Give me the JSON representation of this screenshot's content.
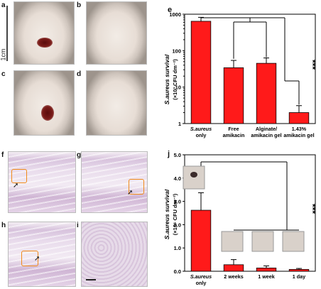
{
  "panels": {
    "a": "a",
    "b": "b",
    "c": "c",
    "d": "d",
    "e": "e",
    "f": "f",
    "g": "g",
    "h": "h",
    "i": "i",
    "j": "j"
  },
  "scale_label": "1cm",
  "arrows": "➚",
  "chart_data": [
    {
      "panel": "e",
      "type": "bar",
      "categories": [
        [
          "S.aureus",
          "only"
        ],
        [
          "Free",
          "amikacin"
        ],
        [
          "Alginate/",
          "amikacin gel"
        ],
        [
          "1.43%",
          "amikacin gel"
        ]
      ],
      "values": [
        640,
        34,
        45,
        2
      ],
      "errors": [
        180,
        20,
        18,
        1.1
      ],
      "ylabel": "S.aureus survival",
      "ylabel2": "(×10³ CFU dm⁻²)",
      "yscale": "log",
      "ylim": [
        1,
        1000
      ],
      "yticks": [
        "1",
        "10",
        "100",
        "1000"
      ],
      "significance": "***",
      "color": "#ff1a1a"
    },
    {
      "panel": "j",
      "type": "bar",
      "categories": [
        [
          "S.aureus",
          "only"
        ],
        [
          "2 weeks"
        ],
        [
          "1 week"
        ],
        [
          "1 day"
        ]
      ],
      "values": [
        2.62,
        0.28,
        0.14,
        0.08
      ],
      "errors": [
        0.75,
        0.22,
        0.09,
        0.04
      ],
      "ylabel": "S.aureus survival",
      "ylabel2": "(×10⁶ CFU dm⁻²)",
      "yscale": "linear",
      "ylim": [
        0,
        5
      ],
      "yticks": [
        "0.0",
        "1.0",
        "2.0",
        "3.0",
        "4.0",
        "5.0"
      ],
      "significance": "***",
      "color": "#ff1a1a"
    }
  ]
}
